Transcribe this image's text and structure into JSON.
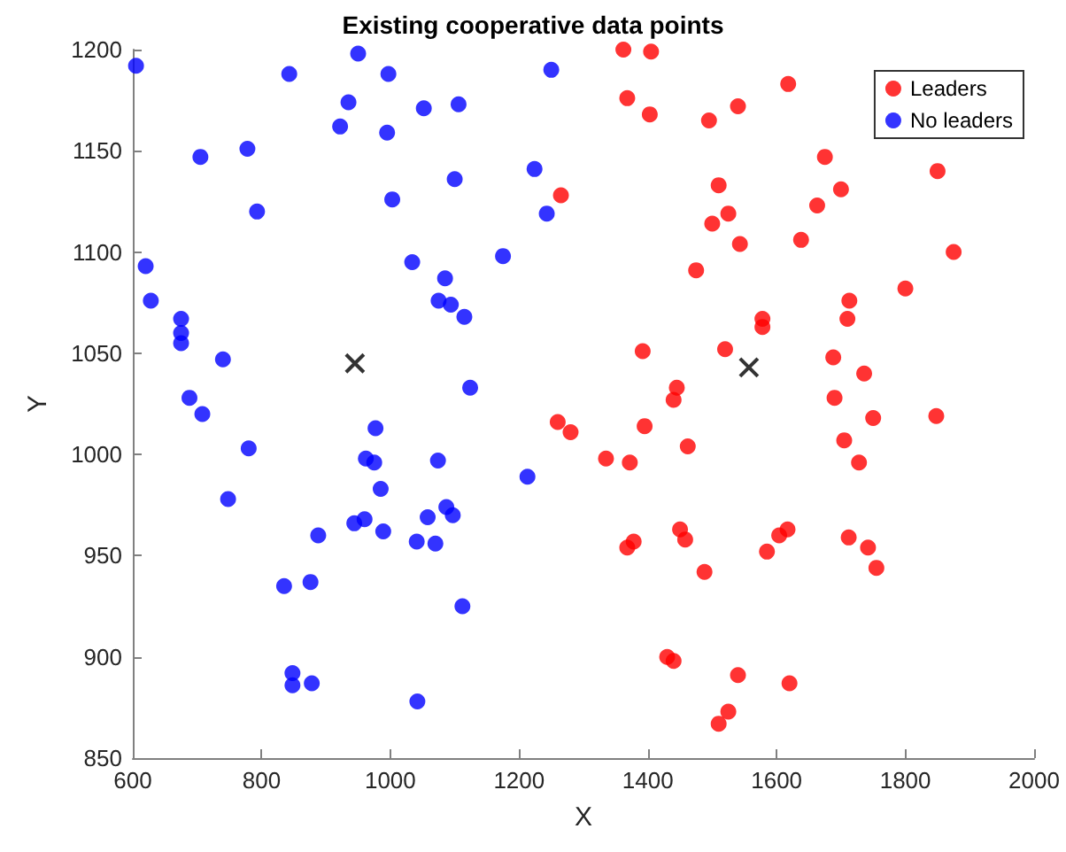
{
  "chart_data": {
    "type": "scatter",
    "title": "Existing cooperative data points",
    "xlabel": "X",
    "ylabel": "Y",
    "xlim": [
      600,
      2000
    ],
    "xticks": [
      600,
      800,
      1000,
      1200,
      1400,
      1600,
      1800,
      2000
    ],
    "ylim": [
      850,
      1200
    ],
    "yticks": [
      850,
      900,
      950,
      1000,
      1050,
      1100,
      1150,
      1200
    ],
    "grid": false,
    "legend": "top right",
    "marker": "circle",
    "series": [
      {
        "name": "Leaders",
        "color": "#ff0000",
        "x": [
          1265,
          1260,
          1280,
          1335,
          1362,
          1368,
          1368,
          1372,
          1378,
          1392,
          1395,
          1405,
          1403,
          1430,
          1440,
          1440,
          1445,
          1450,
          1458,
          1462,
          1475,
          1488,
          1495,
          1500,
          1510,
          1520,
          1525,
          1525,
          1510,
          1540,
          1540,
          1543,
          1578,
          1578,
          1585,
          1604,
          1617,
          1620,
          1638,
          1663,
          1675,
          1688,
          1690,
          1700,
          1705,
          1710,
          1713,
          1712,
          1728,
          1736,
          1742,
          1750,
          1755,
          1800,
          1850,
          1848,
          1875,
          1618
        ],
        "values": [
          1128,
          1016,
          1011,
          998,
          1200,
          1176,
          954,
          996,
          957,
          1051,
          1014,
          1199,
          1168,
          900,
          898,
          1027,
          1033,
          963,
          958,
          1004,
          1091,
          942,
          1165,
          1114,
          1133,
          1052,
          1119,
          873,
          867,
          891,
          1172,
          1104,
          1067,
          1063,
          952,
          960,
          963,
          887,
          1106,
          1123,
          1147,
          1048,
          1028,
          1131,
          1007,
          1067,
          1076,
          959,
          996,
          1040,
          954,
          1018,
          944,
          1082,
          1140,
          1019,
          1100,
          1183
        ]
      },
      {
        "name": "No leaders",
        "color": "#0000ff",
        "x": [
          605,
          620,
          628,
          675,
          675,
          675,
          688,
          708,
          705,
          740,
          748,
          778,
          780,
          793,
          835,
          843,
          848,
          848,
          876,
          878,
          888,
          922,
          935,
          950,
          944,
          962,
          960,
          975,
          977,
          985,
          989,
          995,
          997,
          1003,
          1034,
          1041,
          1052,
          1058,
          1070,
          1074,
          1075,
          1085,
          1087,
          1094,
          1097,
          1100,
          1106,
          1112,
          1115,
          1124,
          1042,
          1175,
          1213,
          1224,
          1250,
          1243
        ],
        "values": [
          1192,
          1093,
          1076,
          1067,
          1060,
          1055,
          1028,
          1020,
          1147,
          1047,
          978,
          1151,
          1003,
          1120,
          935,
          1188,
          892,
          886,
          937,
          887,
          960,
          1162,
          1174,
          1198,
          966,
          998,
          968,
          996,
          1013,
          983,
          962,
          1159,
          1188,
          1126,
          1095,
          957,
          1171,
          969,
          956,
          997,
          1076,
          1087,
          974,
          1074,
          970,
          1136,
          1173,
          925,
          1068,
          1033,
          878,
          1098,
          989,
          1141,
          1190,
          1119
        ]
      },
      {
        "color": "#000000",
        "marker": "cross",
        "x": [
          945,
          1557
        ],
        "values": [
          1045,
          1043
        ]
      }
    ]
  }
}
